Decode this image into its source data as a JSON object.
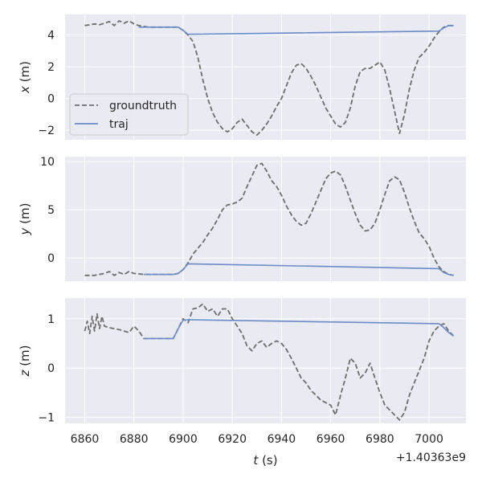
{
  "chart_data": [
    {
      "type": "line",
      "ylabel_var": "x",
      "ylabel_unit": " (m)",
      "ylim": [
        -2.6,
        5.3
      ],
      "yticks": [
        -2,
        0,
        2,
        4
      ],
      "legend": {
        "placement": "lower-left",
        "entries": [
          "groundtruth",
          "traj"
        ]
      },
      "series": [
        {
          "name": "groundtruth",
          "style": "dashed",
          "color": "#6e6e6e",
          "x": [
            6860,
            6862,
            6864,
            6866,
            6868,
            6870,
            6872,
            6874,
            6876,
            6878,
            6880,
            6882,
            6884,
            6886,
            6890,
            6894,
            6898,
            6900,
            6902,
            6904,
            6906,
            6908,
            6910,
            6912,
            6914,
            6916,
            6918,
            6920,
            6922,
            6924,
            6926,
            6928,
            6930,
            6932,
            6934,
            6936,
            6938,
            6940,
            6942,
            6944,
            6946,
            6948,
            6950,
            6952,
            6954,
            6956,
            6958,
            6960,
            6962,
            6964,
            6966,
            6968,
            6970,
            6972,
            6974,
            6976,
            6978,
            6980,
            6982,
            6984,
            6986,
            6988,
            6990,
            6992,
            6994,
            6996,
            6998,
            7000,
            7002,
            7004,
            7006,
            7008,
            7010
          ],
          "y": [
            4.6,
            4.65,
            4.7,
            4.65,
            4.75,
            4.85,
            4.6,
            4.9,
            4.75,
            4.9,
            4.7,
            4.6,
            4.55,
            4.5,
            4.5,
            4.5,
            4.5,
            4.3,
            4.0,
            3.6,
            2.6,
            1.2,
            0.0,
            -0.9,
            -1.5,
            -1.9,
            -2.1,
            -1.9,
            -1.5,
            -1.3,
            -1.7,
            -2.1,
            -2.3,
            -2.0,
            -1.6,
            -1.1,
            -0.5,
            0.0,
            0.8,
            1.6,
            2.1,
            2.2,
            1.9,
            1.4,
            0.8,
            0.1,
            -0.6,
            -1.1,
            -1.6,
            -1.8,
            -1.5,
            -0.6,
            0.8,
            1.7,
            1.9,
            1.9,
            2.1,
            2.3,
            1.8,
            0.6,
            -0.8,
            -2.2,
            -1.0,
            0.6,
            1.8,
            2.6,
            2.9,
            3.3,
            3.8,
            4.2,
            4.5,
            4.6,
            4.6
          ]
        },
        {
          "name": "traj",
          "style": "solid",
          "color": "#6a8cc8",
          "x": [
            6882,
            6886,
            6890,
            6894,
            6898,
            6900,
            6902,
            7004,
            7006,
            7008,
            7010
          ],
          "y": [
            4.5,
            4.5,
            4.5,
            4.5,
            4.5,
            4.3,
            4.05,
            4.25,
            4.45,
            4.6,
            4.6
          ]
        }
      ]
    },
    {
      "type": "line",
      "ylabel_var": "y",
      "ylabel_unit": " (m)",
      "ylim": [
        -2.4,
        10.5
      ],
      "yticks": [
        0,
        5,
        10
      ],
      "series": [
        {
          "name": "groundtruth",
          "style": "dashed",
          "color": "#6e6e6e",
          "x": [
            6860,
            6864,
            6868,
            6870,
            6872,
            6874,
            6876,
            6878,
            6880,
            6884,
            6890,
            6896,
            6898,
            6900,
            6902,
            6904,
            6906,
            6908,
            6910,
            6912,
            6914,
            6916,
            6918,
            6920,
            6922,
            6924,
            6926,
            6928,
            6930,
            6932,
            6934,
            6936,
            6938,
            6940,
            6942,
            6944,
            6946,
            6948,
            6950,
            6952,
            6954,
            6956,
            6958,
            6960,
            6962,
            6964,
            6966,
            6968,
            6970,
            6972,
            6974,
            6976,
            6978,
            6980,
            6982,
            6984,
            6986,
            6988,
            6990,
            6992,
            6994,
            6996,
            6998,
            7000,
            7002,
            7004,
            7006,
            7008,
            7010
          ],
          "y": [
            -1.8,
            -1.8,
            -1.6,
            -1.4,
            -1.8,
            -1.5,
            -1.7,
            -1.4,
            -1.6,
            -1.7,
            -1.7,
            -1.7,
            -1.6,
            -1.2,
            -0.5,
            0.4,
            1.0,
            1.6,
            2.4,
            3.1,
            4.0,
            5.0,
            5.5,
            5.6,
            5.8,
            6.2,
            7.4,
            8.5,
            9.6,
            9.8,
            9.0,
            8.0,
            7.4,
            6.5,
            5.4,
            4.5,
            3.8,
            3.4,
            3.6,
            4.6,
            5.8,
            7.0,
            8.2,
            8.8,
            9.0,
            8.6,
            7.4,
            6.0,
            4.6,
            3.4,
            2.8,
            2.9,
            3.6,
            5.0,
            6.6,
            8.0,
            8.4,
            8.1,
            6.8,
            5.2,
            3.8,
            2.6,
            2.0,
            1.2,
            0.0,
            -0.9,
            -1.4,
            -1.7,
            -1.8
          ]
        },
        {
          "name": "traj",
          "style": "solid",
          "color": "#6a8cc8",
          "x": [
            6884,
            6890,
            6896,
            6898,
            6900,
            6902,
            7004,
            7006,
            7008,
            7010
          ],
          "y": [
            -1.7,
            -1.7,
            -1.7,
            -1.6,
            -1.2,
            -0.6,
            -1.1,
            -1.5,
            -1.7,
            -1.8
          ]
        }
      ]
    },
    {
      "type": "line",
      "ylabel_var": "z",
      "ylabel_unit": " (m)",
      "ylim": [
        -1.12,
        1.42
      ],
      "yticks": [
        -1,
        0,
        1
      ],
      "xlabel_var": "t",
      "xlabel_unit": " (s)",
      "xlim": [
        6852,
        7015
      ],
      "xticks": [
        6860,
        6880,
        6900,
        6920,
        6940,
        6960,
        6980,
        7000
      ],
      "offset_text": "+1.40363e9",
      "series": [
        {
          "name": "groundtruth",
          "style": "dashed",
          "color": "#6e6e6e",
          "x": [
            6860,
            6861,
            6862,
            6863,
            6864,
            6865,
            6866,
            6867,
            6868,
            6870,
            6874,
            6878,
            6880,
            6882,
            6884,
            6886,
            6890,
            6896,
            6898,
            6900,
            6902,
            6904,
            6906,
            6908,
            6910,
            6912,
            6914,
            6916,
            6918,
            6920,
            6922,
            6924,
            6926,
            6928,
            6930,
            6932,
            6934,
            6936,
            6938,
            6940,
            6942,
            6944,
            6946,
            6948,
            6950,
            6952,
            6954,
            6956,
            6958,
            6960,
            6962,
            6964,
            6966,
            6968,
            6970,
            6972,
            6974,
            6976,
            6978,
            6980,
            6982,
            6984,
            6986,
            6988,
            6990,
            6992,
            6994,
            6996,
            6998,
            7000,
            7002,
            7004,
            7006,
            7008,
            7010
          ],
          "y": [
            0.75,
            0.95,
            0.7,
            1.05,
            0.75,
            1.1,
            0.8,
            1.05,
            0.85,
            0.82,
            0.78,
            0.72,
            0.85,
            0.75,
            0.6,
            0.6,
            0.6,
            0.6,
            0.8,
            1.0,
            0.92,
            1.2,
            1.22,
            1.3,
            1.15,
            1.2,
            1.05,
            1.2,
            1.2,
            1.0,
            0.85,
            0.7,
            0.45,
            0.35,
            0.5,
            0.55,
            0.42,
            0.5,
            0.55,
            0.5,
            0.38,
            0.2,
            0.0,
            -0.2,
            -0.3,
            -0.45,
            -0.55,
            -0.65,
            -0.7,
            -0.75,
            -0.95,
            -0.55,
            -0.2,
            0.2,
            0.1,
            -0.2,
            -0.1,
            0.1,
            -0.2,
            -0.5,
            -0.75,
            -0.85,
            -0.95,
            -1.05,
            -0.9,
            -0.55,
            -0.3,
            -0.05,
            0.2,
            0.55,
            0.75,
            0.85,
            0.9,
            0.75,
            0.65
          ]
        },
        {
          "name": "traj",
          "style": "solid",
          "color": "#6a8cc8",
          "x": [
            6884,
            6890,
            6896,
            6898,
            6900,
            6902,
            7004,
            7006,
            7008,
            7010
          ],
          "y": [
            0.6,
            0.6,
            0.6,
            0.8,
            0.97,
            0.98,
            0.9,
            0.82,
            0.72,
            0.65
          ]
        }
      ]
    }
  ]
}
